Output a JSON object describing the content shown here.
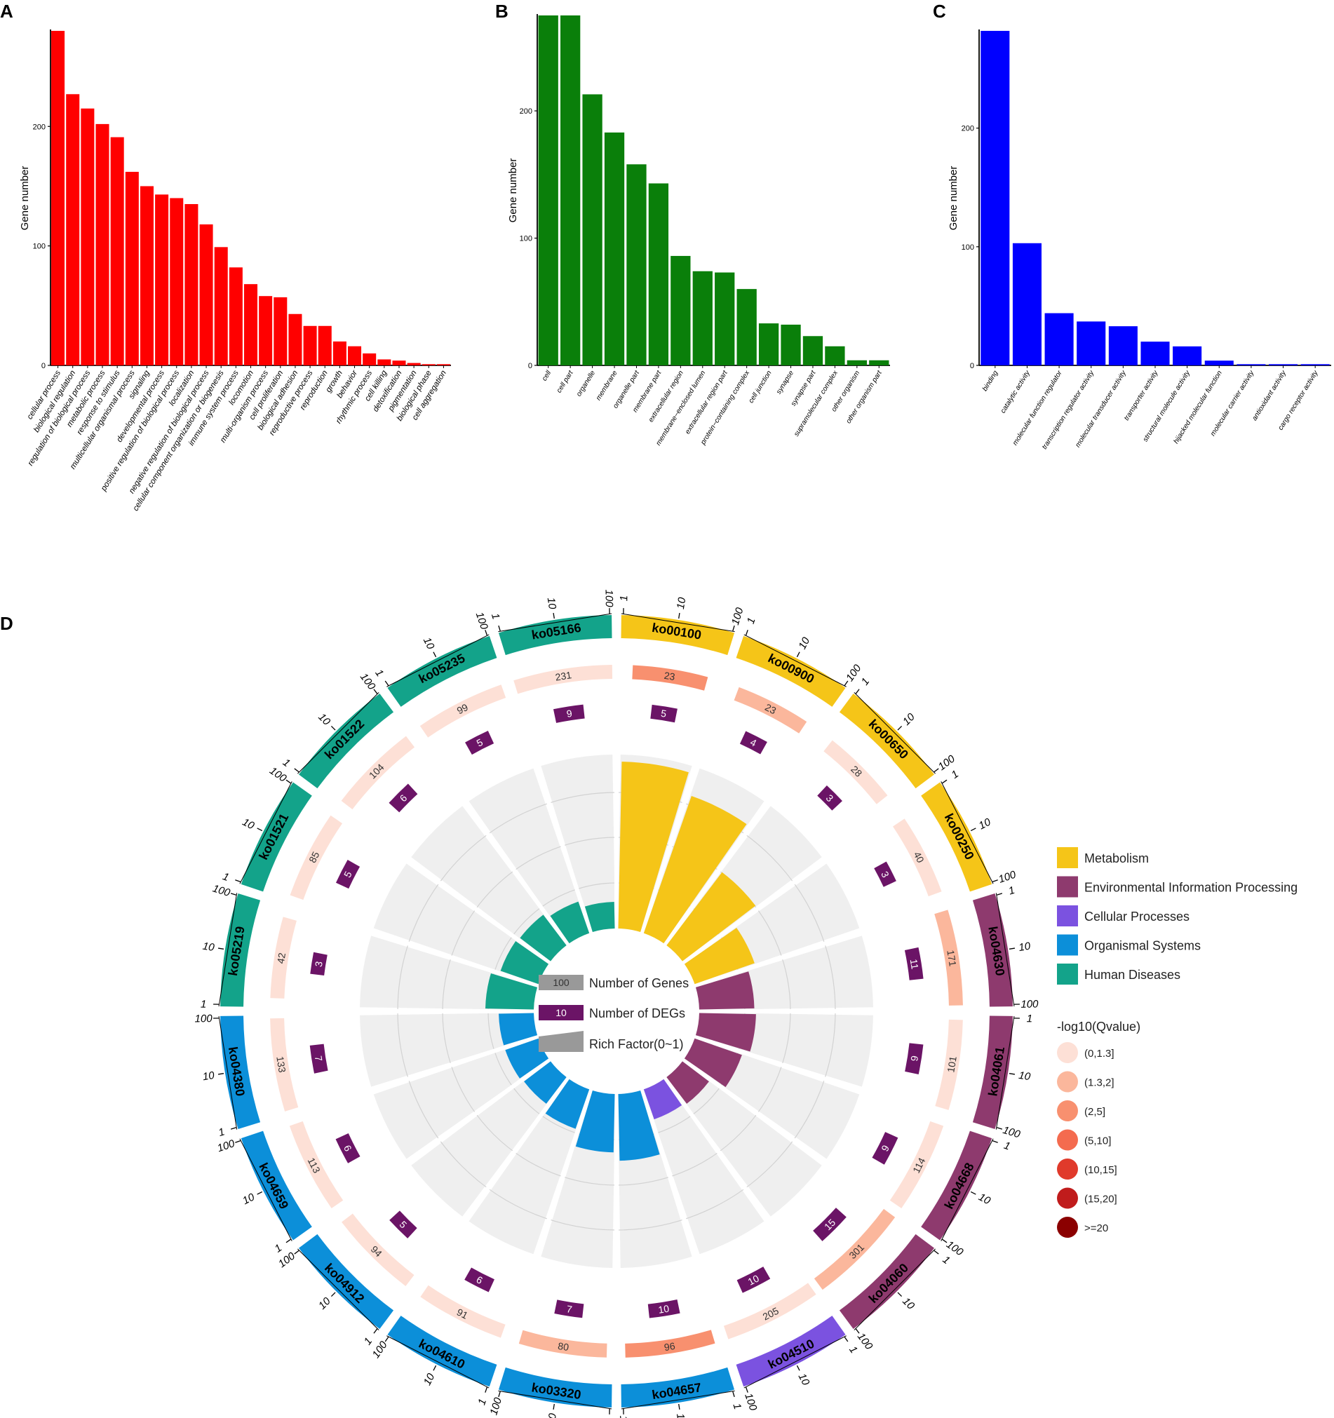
{
  "chart_data": [
    {
      "type": "bar",
      "panel": "A",
      "ylabel": "Gene number",
      "ylim": [
        0,
        280
      ],
      "yticks": [
        0,
        100,
        200
      ],
      "color": "#ff0000",
      "categories": [
        "cellular process",
        "biological regulation",
        "regulation of biological process",
        "metabolic process",
        "response to stimulus",
        "multicellular organismal process",
        "signaling",
        "developmental process",
        "positive regulation of biological process",
        "localization",
        "negative regulation of biological process",
        "cellular component organization or biogenesis",
        "immune system process",
        "locomotion",
        "multi-organism process",
        "cell proliferation",
        "biological adhesion",
        "reproductive process",
        "reproduction",
        "growth",
        "behavior",
        "rhythmic process",
        "cell killing",
        "detoxification",
        "pigmentation",
        "biological phase",
        "cell aggregation"
      ],
      "values": [
        280,
        227,
        215,
        202,
        191,
        162,
        150,
        143,
        140,
        135,
        118,
        99,
        82,
        68,
        58,
        57,
        43,
        33,
        33,
        20,
        16,
        10,
        5,
        4,
        2,
        1,
        1
      ]
    },
    {
      "type": "bar",
      "panel": "B",
      "ylabel": "Gene number",
      "ylim": [
        0,
        275
      ],
      "yticks": [
        0,
        100,
        200
      ],
      "color": "#0a7f0a",
      "categories": [
        "cell",
        "cell part",
        "organelle",
        "membrane",
        "organelle part",
        "membrane part",
        "extracellular region",
        "membrane−enclosed lumen",
        "extracellular region part",
        "protein−containing complex",
        "cell junction",
        "synapse",
        "synapse part",
        "supramolecular complex",
        "other organism",
        "other organism part"
      ],
      "values": [
        275,
        275,
        213,
        183,
        158,
        143,
        86,
        74,
        73,
        60,
        33,
        32,
        23,
        15,
        4,
        4
      ]
    },
    {
      "type": "bar",
      "panel": "C",
      "ylabel": "Gene number",
      "ylim": [
        0,
        282
      ],
      "yticks": [
        0,
        100,
        200
      ],
      "color": "#0000ff",
      "categories": [
        "binding",
        "catalytic activity",
        "molecular function regulator",
        "transcription regulator activity",
        "molecular transducer activity",
        "transporter activity",
        "structural molecule activity",
        "hijacked molecular function",
        "molecular carrier activity",
        "antioxidant activity",
        "cargo receptor activity"
      ],
      "values": [
        282,
        103,
        44,
        37,
        33,
        20,
        16,
        4,
        1,
        1,
        1
      ]
    },
    {
      "type": "circular",
      "panel": "D",
      "scale_labels": [
        "1",
        "10",
        "100"
      ],
      "sectors": [
        {
          "id": "ko00100",
          "category": "Metabolism",
          "genes": 23,
          "degs": 5,
          "rich": 1.0,
          "qbin": 3
        },
        {
          "id": "ko00900",
          "category": "Metabolism",
          "genes": 23,
          "degs": 4,
          "rich": 0.87,
          "qbin": 2
        },
        {
          "id": "ko00650",
          "category": "Metabolism",
          "genes": 28,
          "degs": 3,
          "rich": 0.55,
          "qbin": 1
        },
        {
          "id": "ko00250",
          "category": "Metabolism",
          "genes": 40,
          "degs": 3,
          "rich": 0.38,
          "qbin": 1
        },
        {
          "id": "ko04630",
          "category": "Environmental Information Processing",
          "genes": 171,
          "degs": 11,
          "rich": 0.33,
          "qbin": 2
        },
        {
          "id": "ko04061",
          "category": "Environmental Information Processing",
          "genes": 101,
          "degs": 9,
          "rich": 0.34,
          "qbin": 1
        },
        {
          "id": "ko04668",
          "category": "Environmental Information Processing",
          "genes": 114,
          "degs": 9,
          "rich": 0.3,
          "qbin": 1
        },
        {
          "id": "ko04060",
          "category": "Environmental Information Processing",
          "genes": 301,
          "degs": 15,
          "rich": 0.2,
          "qbin": 2
        },
        {
          "id": "ko04510",
          "category": "Cellular Processes",
          "genes": 205,
          "degs": 10,
          "rich": 0.19,
          "qbin": 1
        },
        {
          "id": "ko04657",
          "category": "Organismal Systems",
          "genes": 96,
          "degs": 10,
          "rich": 0.4,
          "qbin": 3
        },
        {
          "id": "ko03320",
          "category": "Organismal Systems",
          "genes": 80,
          "degs": 7,
          "rich": 0.35,
          "qbin": 2
        },
        {
          "id": "ko04610",
          "category": "Organismal Systems",
          "genes": 91,
          "degs": 6,
          "rich": 0.25,
          "qbin": 1
        },
        {
          "id": "ko04912",
          "category": "Organismal Systems",
          "genes": 94,
          "degs": 5,
          "rich": 0.2,
          "qbin": 1
        },
        {
          "id": "ko04659",
          "category": "Organismal Systems",
          "genes": 113,
          "degs": 6,
          "rich": 0.21,
          "qbin": 1
        },
        {
          "id": "ko04380",
          "category": "Organismal Systems",
          "genes": 133,
          "degs": 7,
          "rich": 0.21,
          "qbin": 1
        },
        {
          "id": "ko05219",
          "category": "Human Diseases",
          "genes": 42,
          "degs": 3,
          "rich": 0.29,
          "qbin": 1
        },
        {
          "id": "ko01521",
          "category": "Human Diseases",
          "genes": 85,
          "degs": 5,
          "rich": 0.24,
          "qbin": 1
        },
        {
          "id": "ko01522",
          "category": "Human Diseases",
          "genes": 104,
          "degs": 6,
          "rich": 0.23,
          "qbin": 1
        },
        {
          "id": "ko05235",
          "category": "Human Diseases",
          "genes": 99,
          "degs": 5,
          "rich": 0.2,
          "qbin": 1
        },
        {
          "id": "ko05166",
          "category": "Human Diseases",
          "genes": 231,
          "degs": 9,
          "rich": 0.16,
          "qbin": 1
        }
      ],
      "legend": {
        "categories": [
          {
            "name": "Metabolism",
            "color": "#f5c518"
          },
          {
            "name": "Environmental Information Processing",
            "color": "#8e3a6e"
          },
          {
            "name": "Cellular Processes",
            "color": "#7b52e0"
          },
          {
            "name": "Organismal Systems",
            "color": "#0c8fd9"
          },
          {
            "name": "Human Diseases",
            "color": "#13a38a"
          }
        ],
        "inner": [
          {
            "sample": "100",
            "label": "Number of Genes",
            "color": "#999999"
          },
          {
            "sample": "10",
            "label": "Number of DEGs",
            "color": "#6b1466"
          },
          {
            "sample": "",
            "label": "Rich Factor(0~1)",
            "color": "#999999"
          }
        ],
        "q_title": "-log10(Qvalue)",
        "q_bins": [
          {
            "label": "(0,1.3]",
            "color": "#fde0d6"
          },
          {
            "label": "(1.3,2]",
            "color": "#fbb79c"
          },
          {
            "label": "(2,5]",
            "color": "#f8906f"
          },
          {
            "label": "(5,10]",
            "color": "#f46b4f"
          },
          {
            "label": "(10,15]",
            "color": "#e03a2b"
          },
          {
            "label": "(15,20]",
            "color": "#c01c1c"
          },
          {
            "label": ">=20",
            "color": "#8b0000"
          }
        ]
      }
    }
  ]
}
